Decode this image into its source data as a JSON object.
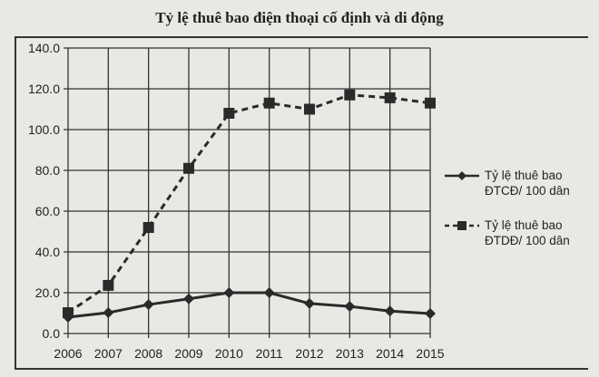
{
  "chart_data": {
    "type": "line",
    "title": "Tỷ lệ thuê bao điện thoại cố định và di động",
    "xlabel": "",
    "ylabel": "",
    "categories": [
      "2006",
      "2007",
      "2008",
      "2009",
      "2010",
      "2011",
      "2012",
      "2013",
      "2014",
      "2015"
    ],
    "series": [
      {
        "name": "Tỷ lệ thuê bao ĐTCĐ/ 100 dân",
        "marker": "diamond",
        "line": "solid",
        "values": [
          8.0,
          10.2,
          14.2,
          17.0,
          20.0,
          20.0,
          14.7,
          13.3,
          11.0,
          9.8
        ]
      },
      {
        "name": "Tỷ lệ thuê bao ĐTDĐ/ 100 dân",
        "marker": "square",
        "line": "dashed",
        "values": [
          10.2,
          23.6,
          52.0,
          81.0,
          108.0,
          113.0,
          110.0,
          117.0,
          115.6,
          113.0
        ]
      }
    ],
    "ylim": [
      0,
      140
    ],
    "yticks": [
      "0.0",
      "20.0",
      "40.0",
      "60.0",
      "80.0",
      "100.0",
      "120.0",
      "140.0"
    ],
    "grid": true,
    "legend_position": "right"
  },
  "legend": {
    "fixed_line1": "Tỷ lệ thuê bao",
    "fixed_line2": "ĐTCĐ/ 100 dân",
    "mobile_line1": "Tỷ lệ thuê bao",
    "mobile_line2": "ĐTDĐ/ 100 dân"
  },
  "colors": {
    "line": "#2a2a2a",
    "grid": "#333333",
    "background": "#e9e8e4"
  }
}
